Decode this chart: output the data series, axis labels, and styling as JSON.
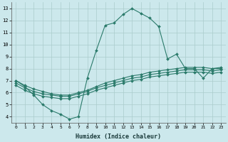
{
  "xlabel": "Humidex (Indice chaleur)",
  "background_color": "#cce8ec",
  "grid_color": "#aacccc",
  "line_color": "#2a7a6a",
  "xlim": [
    -0.5,
    23.5
  ],
  "ylim": [
    3.5,
    13.5
  ],
  "xticks": [
    0,
    1,
    2,
    3,
    4,
    5,
    6,
    7,
    8,
    9,
    10,
    11,
    12,
    13,
    14,
    15,
    16,
    17,
    18,
    19,
    20,
    21,
    22,
    23
  ],
  "yticks": [
    4,
    5,
    6,
    7,
    8,
    9,
    10,
    11,
    12,
    13
  ],
  "line1_x": [
    0,
    1,
    2,
    3,
    4,
    5,
    6,
    7,
    8,
    9,
    10,
    11,
    12,
    13,
    14,
    15,
    16,
    17,
    18,
    19,
    20,
    21,
    22,
    23
  ],
  "line1_y": [
    7.0,
    6.5,
    5.8,
    5.0,
    4.5,
    4.2,
    3.8,
    4.0,
    7.2,
    9.5,
    11.6,
    11.8,
    12.5,
    13.0,
    12.6,
    12.2,
    11.5,
    8.8,
    9.2,
    8.0,
    8.0,
    7.2,
    8.0,
    8.0
  ],
  "line2_x": [
    0,
    1,
    2,
    3,
    4,
    5,
    6,
    7,
    8,
    9,
    10,
    11,
    12,
    13,
    14,
    15,
    16,
    17,
    18,
    19,
    20,
    21,
    22,
    23
  ],
  "line2_y": [
    7.0,
    6.6,
    6.3,
    6.1,
    5.9,
    5.8,
    5.8,
    6.0,
    6.2,
    6.5,
    6.8,
    7.0,
    7.2,
    7.4,
    7.5,
    7.7,
    7.8,
    7.9,
    8.0,
    8.1,
    8.1,
    8.1,
    8.0,
    8.1
  ],
  "line3_x": [
    0,
    1,
    2,
    3,
    4,
    5,
    6,
    7,
    8,
    9,
    10,
    11,
    12,
    13,
    14,
    15,
    16,
    17,
    18,
    19,
    20,
    21,
    22,
    23
  ],
  "line3_y": [
    6.8,
    6.4,
    6.1,
    5.9,
    5.8,
    5.7,
    5.7,
    5.9,
    6.1,
    6.4,
    6.6,
    6.8,
    7.0,
    7.2,
    7.3,
    7.5,
    7.6,
    7.7,
    7.8,
    7.9,
    7.9,
    7.9,
    7.8,
    7.9
  ],
  "line4_x": [
    0,
    1,
    2,
    3,
    4,
    5,
    6,
    7,
    8,
    9,
    10,
    11,
    12,
    13,
    14,
    15,
    16,
    17,
    18,
    19,
    20,
    21,
    22,
    23
  ],
  "line4_y": [
    6.6,
    6.2,
    5.9,
    5.7,
    5.6,
    5.5,
    5.5,
    5.7,
    5.9,
    6.2,
    6.4,
    6.6,
    6.8,
    7.0,
    7.1,
    7.3,
    7.4,
    7.5,
    7.6,
    7.7,
    7.7,
    7.7,
    7.6,
    7.7
  ]
}
